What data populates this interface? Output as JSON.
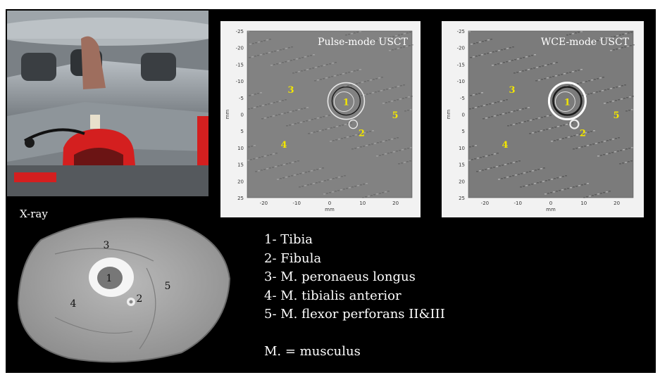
{
  "panels": {
    "pulse": {
      "title": "Pulse-mode USCT",
      "xlabel": "mm",
      "ylabel": "mm",
      "xticks": [
        "-20",
        "-10",
        "0",
        "10",
        "20"
      ],
      "yticks": [
        "-25",
        "-20",
        "-15",
        "-10",
        "-5",
        "0",
        "5",
        "10",
        "15",
        "20",
        "25"
      ],
      "labels": [
        "1",
        "2",
        "3",
        "4",
        "5"
      ]
    },
    "wce": {
      "title": "WCE-mode USCT",
      "xlabel": "mm",
      "ylabel": "mm",
      "xticks": [
        "-20",
        "-10",
        "0",
        "10",
        "20"
      ],
      "yticks": [
        "-25",
        "-20",
        "-15",
        "-10",
        "-5",
        "0",
        "5",
        "10",
        "15",
        "20",
        "25"
      ],
      "labels": [
        "1",
        "2",
        "3",
        "4",
        "5"
      ]
    }
  },
  "xray": {
    "title": "X-ray",
    "labels": [
      "1",
      "2",
      "3",
      "4",
      "5"
    ]
  },
  "legend": {
    "items": [
      "1- Tibia",
      "2- Fibula",
      "3- M. peronaeus longus",
      "4- M. tibialis anterior",
      "5- M. flexor perforans II&III"
    ],
    "note": "M. = musculus"
  },
  "colors": {
    "label_yellow": "#f2e600",
    "background": "#000000",
    "text": "#ffffff"
  }
}
